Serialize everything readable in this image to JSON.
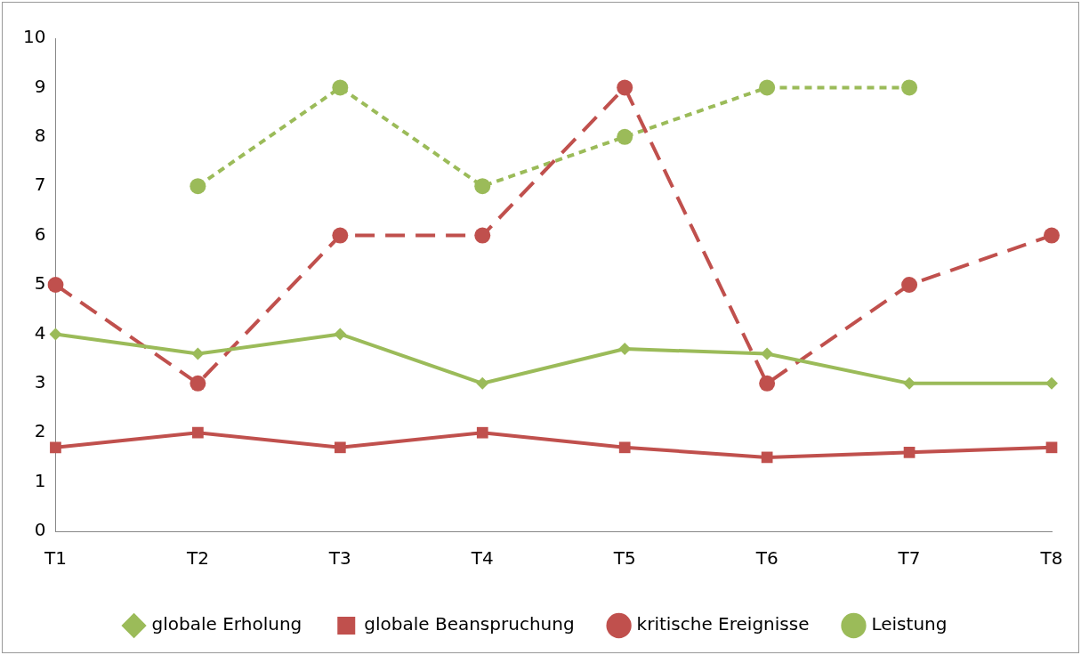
{
  "chart_data": {
    "type": "line",
    "categories": [
      "T1",
      "T2",
      "T3",
      "T4",
      "T5",
      "T6",
      "T7",
      "T8"
    ],
    "series": [
      {
        "name": "globale Erholung",
        "color": "#9bbb59",
        "marker": "diamond",
        "line_style": "solid",
        "values": [
          4.0,
          3.6,
          4.0,
          3.0,
          3.7,
          3.6,
          3.0,
          3.0
        ]
      },
      {
        "name": "globale Beanspruchung",
        "color": "#c0504d",
        "marker": "square",
        "line_style": "solid",
        "values": [
          1.7,
          2.0,
          1.7,
          2.0,
          1.7,
          1.5,
          1.6,
          1.7
        ]
      },
      {
        "name": "kritische Ereignisse",
        "color": "#c0504d",
        "marker": "circle",
        "line_style": "dashed",
        "values": [
          5,
          3,
          6,
          6,
          9,
          3,
          5,
          6
        ]
      },
      {
        "name": "Leistung",
        "color": "#9bbb59",
        "marker": "circle",
        "line_style": "dotted",
        "values": [
          null,
          7,
          9,
          7,
          8,
          9,
          9,
          null
        ]
      }
    ],
    "ylim": [
      0,
      10
    ],
    "yticks": [
      0,
      1,
      2,
      3,
      4,
      5,
      6,
      7,
      8,
      9,
      10
    ],
    "grid": false,
    "legend": "bottom"
  }
}
